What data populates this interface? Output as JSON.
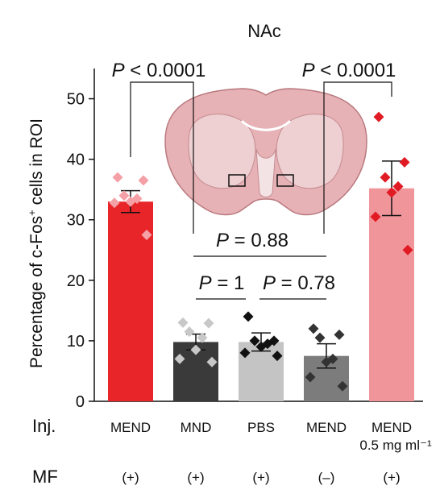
{
  "chart_data": {
    "type": "bar",
    "title": "NAc",
    "ylabel_main": "Percentage of c-Fos",
    "ylabel_sup": "+",
    "ylabel_rest": " cells in ROI",
    "ylim": [
      0,
      55
    ],
    "yticks": [
      0,
      10,
      20,
      30,
      40,
      50
    ],
    "grid": false,
    "row_labels": {
      "inj": "Inj.",
      "mf": "MF"
    },
    "categories": [
      {
        "inj": "MEND",
        "inj_sub": "",
        "mf": "(+)",
        "color": "#e8262a",
        "point_color": "#f4a0a6",
        "value": 33.0,
        "sem": 1.8,
        "points": [
          37,
          36.5,
          34,
          33.5,
          33,
          32.8,
          27.5
        ]
      },
      {
        "inj": "MND",
        "inj_sub": "",
        "mf": "(+)",
        "color": "#3a3a3a",
        "point_color": "#c8c8c8",
        "value": 9.8,
        "sem": 1.3,
        "points": [
          13,
          12.9,
          11.5,
          10.5,
          8.5,
          7,
          6.5
        ]
      },
      {
        "inj": "PBS",
        "inj_sub": "",
        "mf": "(+)",
        "color": "#c4c4c4",
        "point_color": "#111111",
        "value": 9.8,
        "sem": 1.5,
        "points": [
          14,
          10,
          10,
          9.5,
          9,
          8,
          7.5
        ]
      },
      {
        "inj": "MEND",
        "inj_sub": "",
        "mf": "(–)",
        "color": "#7c7c7c",
        "point_color": "#333333",
        "value": 7.5,
        "sem": 2.0,
        "points": [
          12,
          11,
          10.5,
          7,
          6.5,
          4,
          2.5
        ]
      },
      {
        "inj": "MEND",
        "inj_sub": "0.5 mg ml⁻¹",
        "mf": "(+)",
        "color": "#f0959a",
        "point_color": "#e01b24",
        "value": 35.2,
        "sem": 4.5,
        "points": [
          47,
          39.5,
          37,
          35.5,
          34.5,
          30.5,
          25
        ]
      }
    ],
    "annotations": [
      {
        "label": "P < 0.0001",
        "from": 0,
        "to": 3
      },
      {
        "label": "P < 0.0001",
        "from": 4,
        "to": 3
      },
      {
        "label": "P = 0.88",
        "from": 1,
        "to": 3
      },
      {
        "label": "P = 1",
        "from": 1,
        "to": 2
      },
      {
        "label": "P = 0.78",
        "from": 2,
        "to": 3
      }
    ]
  }
}
